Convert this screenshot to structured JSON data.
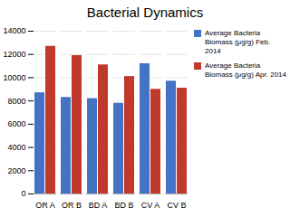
{
  "chart_data": {
    "type": "bar",
    "title": "Bacterial Dynamics",
    "categories": [
      "OR A",
      "OR B",
      "BD A",
      "BD B",
      "CV A",
      "CV B"
    ],
    "series": [
      {
        "name": "Average Bacteria Biomass (μg/g) Feb. 2014",
        "color": "#4472C4",
        "values": [
          8700,
          8300,
          8200,
          7800,
          11200,
          9700
        ]
      },
      {
        "name": "Average Bacteria Biomass (μg/g) Apr. 2014",
        "color": "#C0392B",
        "values": [
          12700,
          11900,
          11100,
          10100,
          9000,
          9100
        ]
      }
    ],
    "ylim": [
      0,
      14000
    ],
    "yticks": [
      0,
      2000,
      4000,
      6000,
      8000,
      10000,
      12000,
      14000
    ],
    "grid": true,
    "legend": "right"
  }
}
